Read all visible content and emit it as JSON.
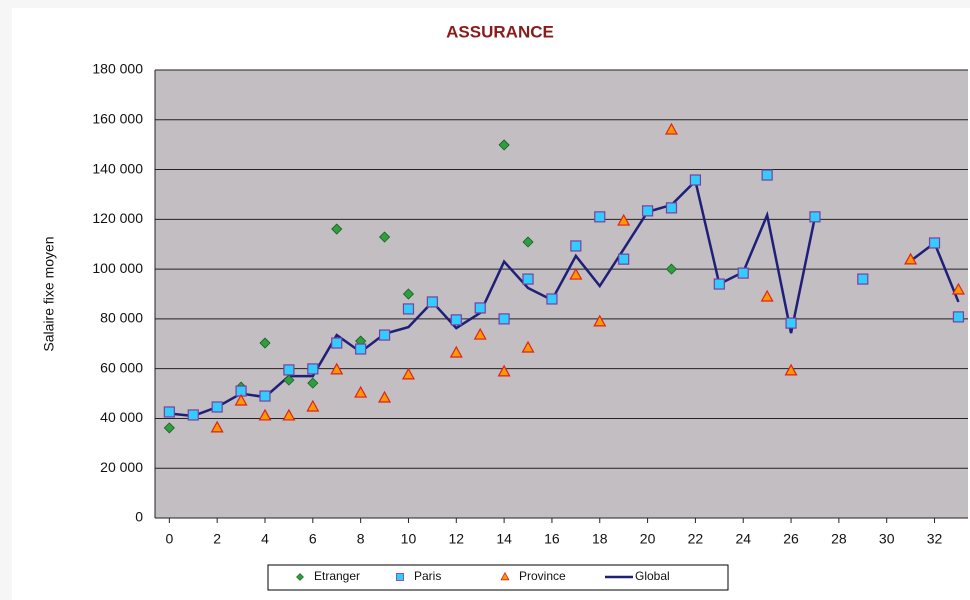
{
  "chart_data": {
    "type": "line",
    "title": "ASSURANCE",
    "y_label": "Salaire fixe moyen",
    "x": [
      0,
      1,
      2,
      3,
      4,
      5,
      6,
      7,
      8,
      9,
      10,
      11,
      12,
      13,
      14,
      15,
      16,
      17,
      18,
      19,
      20,
      21,
      22,
      23,
      24,
      25,
      26,
      27,
      28,
      29,
      30,
      31,
      32,
      33
    ],
    "xlim": [
      -0.6,
      33.4
    ],
    "xticks": [
      0,
      2,
      4,
      6,
      8,
      10,
      12,
      14,
      16,
      18,
      20,
      22,
      24,
      26,
      28,
      30,
      32
    ],
    "ylim": [
      0,
      180000
    ],
    "yticks": [
      {
        "value": 0,
        "label": "0"
      },
      {
        "value": 20000,
        "label": "20 000"
      },
      {
        "value": 40000,
        "label": "40 000"
      },
      {
        "value": 60000,
        "label": "60 000"
      },
      {
        "value": 80000,
        "label": "80 000"
      },
      {
        "value": 100000,
        "label": "100 000"
      },
      {
        "value": 120000,
        "label": "120 000"
      },
      {
        "value": 140000,
        "label": "140 000"
      },
      {
        "value": 160000,
        "label": "160 000"
      },
      {
        "value": 180000,
        "label": "180 000"
      }
    ],
    "grid": true,
    "legend": "bottom",
    "series": [
      {
        "name": "Etranger",
        "marker": "diamond",
        "color": "#2e9e3e",
        "values": [
          36200,
          null,
          null,
          52600,
          70300,
          55400,
          54200,
          116100,
          71100,
          112900,
          90000,
          null,
          null,
          null,
          149900,
          110900,
          null,
          null,
          null,
          null,
          null,
          100000,
          null,
          null,
          null,
          null,
          null,
          null,
          null,
          null,
          null,
          null,
          null,
          null
        ]
      },
      {
        "name": "Paris",
        "marker": "square",
        "color": "#33ccff",
        "values": [
          42600,
          41400,
          44600,
          51000,
          49000,
          59500,
          59900,
          70300,
          67900,
          73500,
          84000,
          86800,
          79600,
          84400,
          80000,
          96000,
          88000,
          109300,
          121000,
          104000,
          123400,
          124600,
          135800,
          94000,
          98400,
          137800,
          78300,
          121000,
          null,
          96000,
          null,
          null,
          110500,
          80800
        ]
      },
      {
        "name": "Province",
        "marker": "triangle",
        "color": "#ff9900",
        "values": [
          null,
          null,
          36200,
          47000,
          41000,
          41000,
          44600,
          59500,
          50200,
          48200,
          57500,
          null,
          66300,
          73500,
          58700,
          68300,
          null,
          97600,
          78800,
          119300,
          null,
          155900,
          null,
          null,
          null,
          88800,
          59100,
          null,
          null,
          null,
          null,
          103700,
          null,
          91600
        ]
      },
      {
        "name": "Global",
        "marker": "line",
        "color": "#1f1f7a",
        "values": [
          42000,
          41000,
          44600,
          50000,
          48600,
          57000,
          57000,
          73500,
          66700,
          74000,
          76700,
          86800,
          76300,
          82400,
          103000,
          92400,
          87600,
          105300,
          93200,
          108000,
          123000,
          125800,
          135400,
          94000,
          98800,
          121700,
          74300,
          121000,
          null,
          null,
          null,
          103300,
          110500,
          86800
        ]
      }
    ]
  }
}
